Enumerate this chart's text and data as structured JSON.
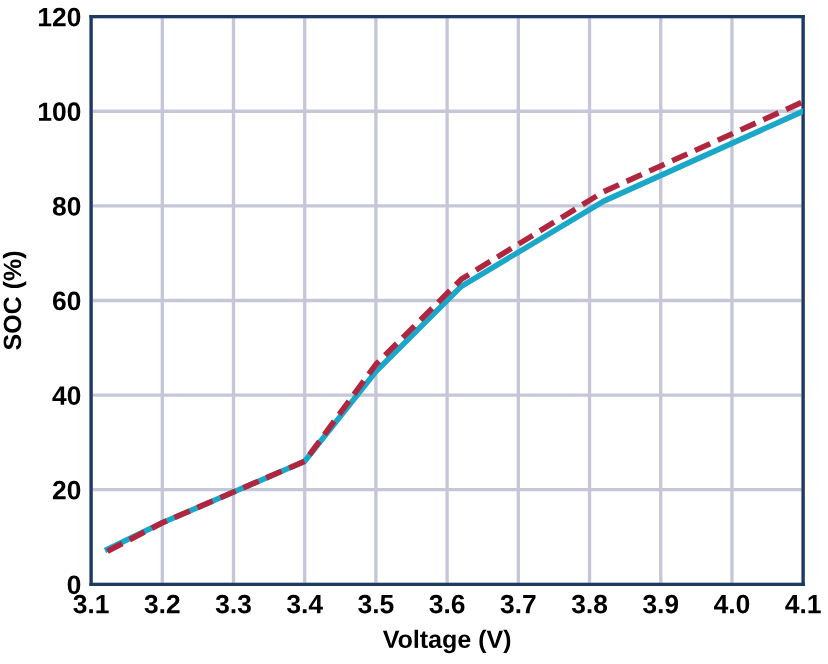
{
  "chart_data": {
    "type": "line",
    "xlabel": "Voltage (V)",
    "ylabel": "SOC (%)",
    "xlim": [
      3.1,
      4.1
    ],
    "xticks": [
      {
        "value": 3.1,
        "label": "3.1"
      },
      {
        "value": 3.2,
        "label": "3.2"
      },
      {
        "value": 3.3,
        "label": "3.3"
      },
      {
        "value": 3.4,
        "label": "3.4"
      },
      {
        "value": 3.5,
        "label": "3.5"
      },
      {
        "value": 3.6,
        "label": "3.6"
      },
      {
        "value": 3.7,
        "label": "3.7"
      },
      {
        "value": 3.8,
        "label": "3.8"
      },
      {
        "value": 3.9,
        "label": "3.9"
      },
      {
        "value": 4.0,
        "label": "4.0"
      },
      {
        "value": 4.1,
        "label": "4.1"
      }
    ],
    "ylim": [
      0,
      120
    ],
    "yticks": [
      0,
      20,
      40,
      60,
      80,
      100,
      120
    ],
    "grid": true,
    "legend": false,
    "series": [
      {
        "color": "#1aa7c9",
        "line_style": "solid",
        "x": [
          3.123,
          3.2,
          3.3,
          3.4,
          3.5,
          3.62,
          3.82,
          4.1
        ],
        "values": [
          7.4,
          13,
          19.5,
          26,
          45,
          63,
          81,
          100
        ]
      },
      {
        "color": "#b0263f",
        "line_style": "dashed",
        "x": [
          3.123,
          3.2,
          3.3,
          3.4,
          3.5,
          3.62,
          3.82,
          4.1
        ],
        "values": [
          7,
          13,
          19.5,
          26,
          46.5,
          64.5,
          83,
          102
        ]
      }
    ]
  }
}
